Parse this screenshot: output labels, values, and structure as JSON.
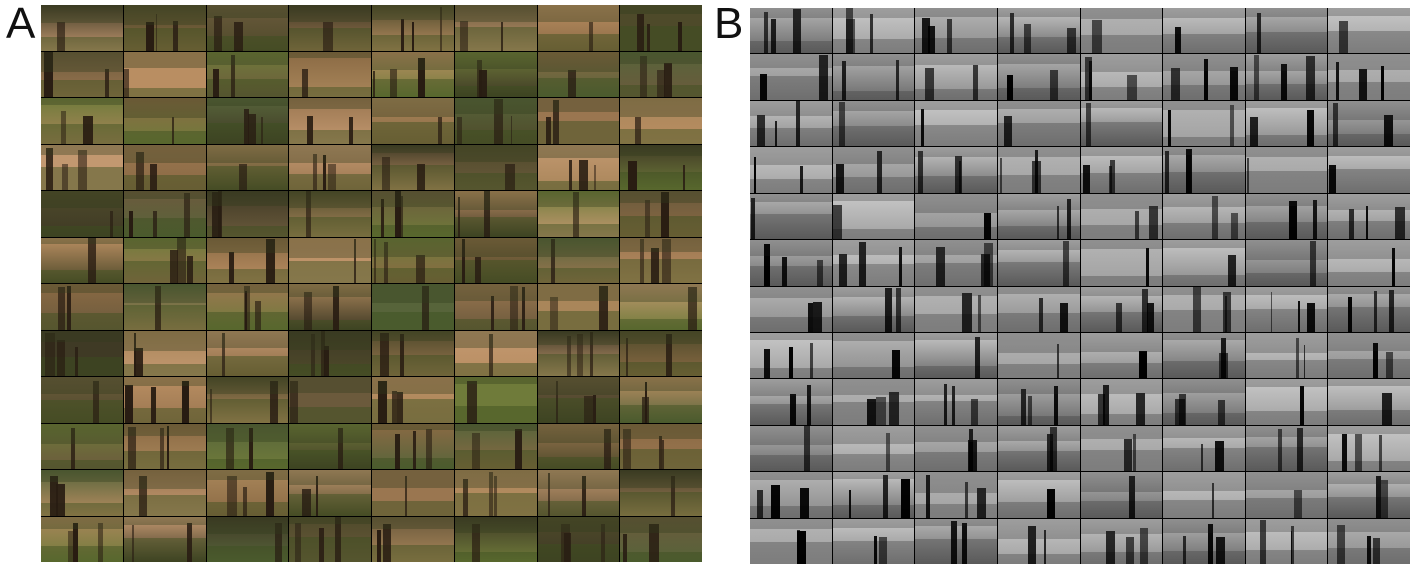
{
  "panels": [
    {
      "id": "A",
      "label": "A",
      "kind": "natural-image-grid",
      "rows": 12,
      "cols": 8
    },
    {
      "id": "B",
      "label": "B",
      "kind": "depth-map-grid",
      "rows": 12,
      "cols": 8
    }
  ],
  "colors": {
    "scene_palette": [
      "#6b5a3c",
      "#8a6a44",
      "#a9865a",
      "#4e4a2a",
      "#6f7b3a",
      "#9a7650",
      "#3f3a25",
      "#b98e62",
      "#57643a",
      "#c29870"
    ],
    "depth_palette": [
      "#2a2a2a",
      "#4a4a4a",
      "#6a6a6a",
      "#8a8a8a",
      "#a0a0a0",
      "#b5b5b5",
      "#c8c8c8"
    ]
  }
}
